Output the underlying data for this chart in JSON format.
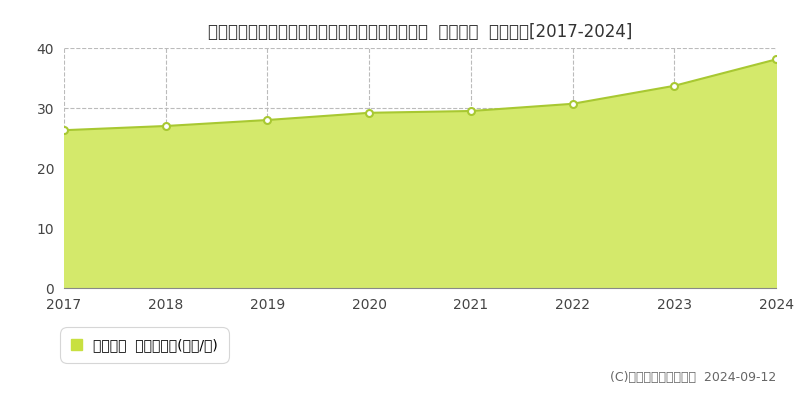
{
  "title": "北海道札幌市西区八軒１条東５丁目７２５番５外  地価公示  地価推移[2017-2024]",
  "years": [
    2017,
    2018,
    2019,
    2020,
    2021,
    2022,
    2023,
    2024
  ],
  "values": [
    26.3,
    27.0,
    28.0,
    29.2,
    29.5,
    30.7,
    33.7,
    38.1
  ],
  "ylim": [
    0,
    40
  ],
  "yticks": [
    0,
    10,
    20,
    30,
    40
  ],
  "fill_color": "#d4e96b",
  "line_color": "#a8c832",
  "marker_color_face": "#ffffff",
  "marker_color_edge": "#a8c832",
  "bg_color": "#ffffff",
  "plot_bg_color": "#ffffff",
  "grid_color": "#bbbbbb",
  "legend_label": "地価公示  平均坪単価(万円/坪)",
  "legend_marker_color": "#c8e040",
  "copyright_text": "(C)土地価格ドットコム  2024-09-12",
  "title_fontsize": 12,
  "tick_fontsize": 10,
  "legend_fontsize": 10,
  "copyright_fontsize": 9
}
